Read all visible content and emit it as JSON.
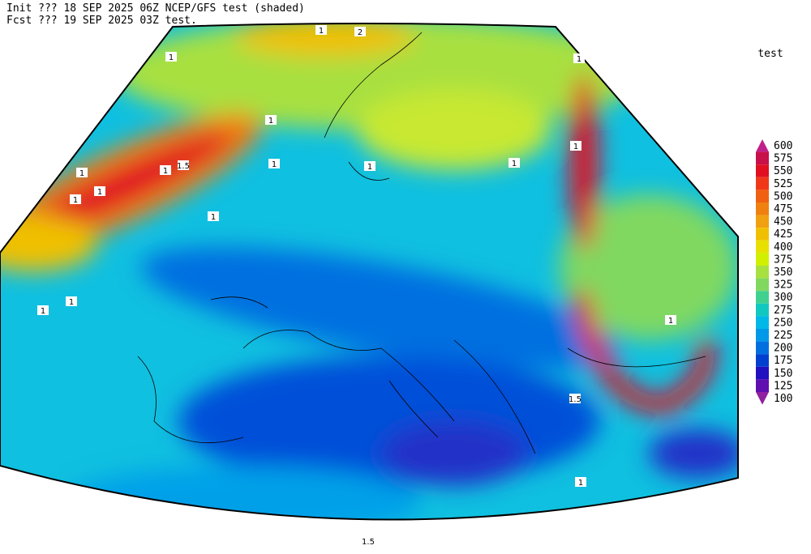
{
  "header": {
    "line1": "Init  ??? 18 SEP 2025 06Z  NCEP/GFS test (shaded)",
    "line2": "Fcst ??? 19 SEP 2025 03Z  test."
  },
  "colorbar": {
    "title": "test",
    "levels": [
      {
        "label": "600",
        "color": "#c0208a"
      },
      {
        "label": "575",
        "color": "#c8104a"
      },
      {
        "label": "550",
        "color": "#e01020"
      },
      {
        "label": "525",
        "color": "#f03818"
      },
      {
        "label": "500",
        "color": "#f06010"
      },
      {
        "label": "475",
        "color": "#f08010"
      },
      {
        "label": "450",
        "color": "#f0a010"
      },
      {
        "label": "425",
        "color": "#f0c000"
      },
      {
        "label": "400",
        "color": "#e8e000"
      },
      {
        "label": "375",
        "color": "#d0f000"
      },
      {
        "label": "350",
        "color": "#a8e040"
      },
      {
        "label": "325",
        "color": "#80d860"
      },
      {
        "label": "300",
        "color": "#40d090"
      },
      {
        "label": "275",
        "color": "#10c8c0"
      },
      {
        "label": "250",
        "color": "#00b8e8"
      },
      {
        "label": "225",
        "color": "#0098e8"
      },
      {
        "label": "200",
        "color": "#0070e0"
      },
      {
        "label": "175",
        "color": "#0040d0"
      },
      {
        "label": "150",
        "color": "#2010c0"
      },
      {
        "label": "125",
        "color": "#6010b0"
      },
      {
        "label": "100",
        "color": "#9020a0"
      }
    ]
  },
  "contour_labels": [
    "1",
    "2",
    "1",
    "1",
    "1",
    "1.5",
    "1",
    "1",
    "1",
    "1",
    "1",
    "1",
    "1",
    "1",
    "1",
    "1",
    "1",
    "1",
    "1.5",
    "1",
    "1.5"
  ]
}
